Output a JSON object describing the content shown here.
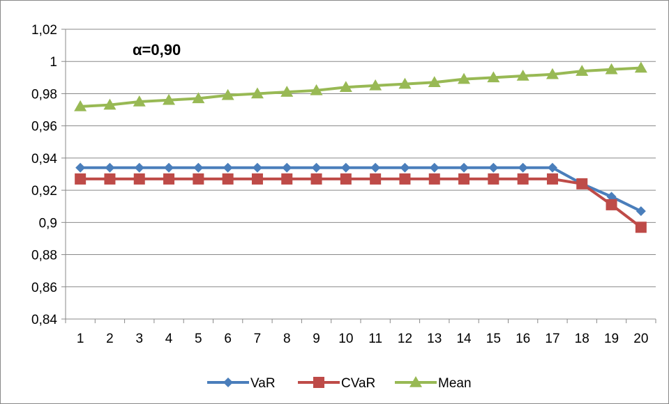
{
  "chart_data": {
    "type": "line",
    "title": "",
    "xlabel": "",
    "ylabel": "",
    "annotation": "α=0,90",
    "categories": [
      "1",
      "2",
      "3",
      "4",
      "5",
      "6",
      "7",
      "8",
      "9",
      "10",
      "11",
      "12",
      "13",
      "14",
      "15",
      "16",
      "17",
      "18",
      "19",
      "20"
    ],
    "ylim": [
      0.84,
      1.02
    ],
    "yticks": [
      "0,84",
      "0,86",
      "0,88",
      "0,9",
      "0,92",
      "0,94",
      "0,96",
      "0,98",
      "1",
      "1,02"
    ],
    "ytick_values": [
      0.84,
      0.86,
      0.88,
      0.9,
      0.92,
      0.94,
      0.96,
      0.98,
      1.0,
      1.02
    ],
    "grid": true,
    "legend_position": "bottom",
    "series": [
      {
        "name": "VaR",
        "color": "#4a7ebb",
        "marker": "diamond",
        "values": [
          0.934,
          0.934,
          0.934,
          0.934,
          0.934,
          0.934,
          0.934,
          0.934,
          0.934,
          0.934,
          0.934,
          0.934,
          0.934,
          0.934,
          0.934,
          0.934,
          0.934,
          0.924,
          0.916,
          0.907
        ]
      },
      {
        "name": "CVaR",
        "color": "#be4b48",
        "marker": "square",
        "values": [
          0.927,
          0.927,
          0.927,
          0.927,
          0.927,
          0.927,
          0.927,
          0.927,
          0.927,
          0.927,
          0.927,
          0.927,
          0.927,
          0.927,
          0.927,
          0.927,
          0.927,
          0.924,
          0.911,
          0.897
        ]
      },
      {
        "name": "Mean",
        "color": "#98b954",
        "marker": "triangle",
        "values": [
          0.972,
          0.973,
          0.975,
          0.976,
          0.977,
          0.979,
          0.98,
          0.981,
          0.982,
          0.984,
          0.985,
          0.986,
          0.987,
          0.989,
          0.99,
          0.991,
          0.992,
          0.994,
          0.995,
          0.996
        ]
      }
    ]
  }
}
